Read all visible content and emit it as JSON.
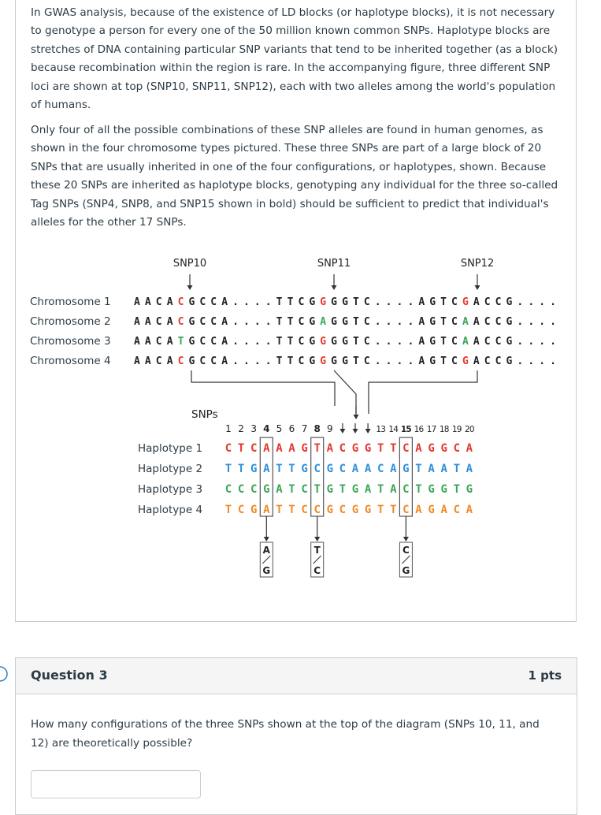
{
  "passage": {
    "paragraphs": [
      "In GWAS analysis, because of the existence of LD blocks (or haplotype blocks), it is not necessary to genotype a person for every one of the 50 million known common SNPs. Haplotype blocks are stretches of DNA containing particular SNP variants that tend to be inherited together (as a block) because recombination within the region is rare. In the accompanying figure, three different SNP loci are shown at top (SNP10, SNP11, SNP12), each with two alleles among the world's population of humans.",
      "Only four of all the possible combinations of these SNP alleles are found in human genomes, as shown in the four chromosome types pictured. These three SNPs are part of a large block of 20 SNPs that are usually inherited in one of the four configurations, or haplotypes, shown. Because these 20 SNPs are inherited as haplotype blocks, genotyping any individual for the three so-called Tag SNPs (SNP4, SNP8, and SNP15 shown in bold) should be sufficient to predict that individual's alleles for the other 17 SNPs."
    ],
    "figure": {
      "snp_labels": [
        "SNP10",
        "SNP11",
        "SNP12"
      ],
      "chromosomes": [
        {
          "label": "Chromosome 1",
          "segments": [
            {
              "text": "AACA",
              "color": "#222222"
            },
            {
              "text": "C",
              "color": "#e2382c"
            },
            {
              "text": "GCCA....TTCG",
              "color": "#222222"
            },
            {
              "text": "G",
              "color": "#e2382c"
            },
            {
              "text": "GGTC....AGTC",
              "color": "#222222"
            },
            {
              "text": "G",
              "color": "#e2382c"
            },
            {
              "text": "ACCG....",
              "color": "#222222"
            }
          ]
        },
        {
          "label": "Chromosome 2",
          "segments": [
            {
              "text": "AACA",
              "color": "#222222"
            },
            {
              "text": "C",
              "color": "#e2382c"
            },
            {
              "text": "GCCA....TTCG",
              "color": "#222222"
            },
            {
              "text": "A",
              "color": "#3aa655"
            },
            {
              "text": "GGTC....AGTC",
              "color": "#222222"
            },
            {
              "text": "A",
              "color": "#3aa655"
            },
            {
              "text": "ACCG....",
              "color": "#222222"
            }
          ]
        },
        {
          "label": "Chromosome 3",
          "segments": [
            {
              "text": "AACA",
              "color": "#222222"
            },
            {
              "text": "T",
              "color": "#3aa655"
            },
            {
              "text": "GCCA....TTCG",
              "color": "#222222"
            },
            {
              "text": "G",
              "color": "#e2382c"
            },
            {
              "text": "GGTC....AGTC",
              "color": "#222222"
            },
            {
              "text": "A",
              "color": "#3aa655"
            },
            {
              "text": "ACCG....",
              "color": "#222222"
            }
          ]
        },
        {
          "label": "Chromosome 4",
          "segments": [
            {
              "text": "AACA",
              "color": "#222222"
            },
            {
              "text": "C",
              "color": "#e2382c"
            },
            {
              "text": "GCCA....TTCG",
              "color": "#222222"
            },
            {
              "text": "G",
              "color": "#e2382c"
            },
            {
              "text": "GGTC....AGTC",
              "color": "#222222"
            },
            {
              "text": "G",
              "color": "#e2382c"
            },
            {
              "text": "ACCG....",
              "color": "#222222"
            }
          ]
        }
      ],
      "snps_label": "SNPs",
      "snp_numbers": [
        {
          "text": "1"
        },
        {
          "text": "2"
        },
        {
          "text": "3"
        },
        {
          "text": "4",
          "bold": true
        },
        {
          "text": "5"
        },
        {
          "text": "6"
        },
        {
          "text": "7"
        },
        {
          "text": "8",
          "bold": true
        },
        {
          "text": "9"
        },
        null,
        null,
        null,
        {
          "text": "13"
        },
        {
          "text": "14"
        },
        {
          "text": "15",
          "bold": true
        },
        {
          "text": "16"
        },
        {
          "text": "17"
        },
        {
          "text": "18"
        },
        {
          "text": "19"
        },
        {
          "text": "20"
        }
      ],
      "haplotypes": [
        {
          "label": "Haplotype 1",
          "sequence": "CTCAAAGTACGGTTCAGGCA",
          "color": "#e2382c"
        },
        {
          "label": "Haplotype 2",
          "sequence": "TTGATTGCGCAACAGTAATA",
          "color": "#2f8fd8"
        },
        {
          "label": "Haplotype 3",
          "sequence": "CCCGATCTGTGATACTGGTG",
          "color": "#3aa655"
        },
        {
          "label": "Haplotype 4",
          "sequence": "TCGATTCCGCGGTTCAGACA",
          "color": "#f08a24"
        }
      ],
      "alleles": [
        [
          "A",
          "G"
        ],
        [
          "T",
          "C"
        ],
        [
          "C",
          "G"
        ]
      ]
    }
  },
  "question": {
    "title": "Question 3",
    "points": "1 pts",
    "text": "How many configurations of the three SNPs shown at the top of the diagram (SNPs 10, 11, and 12) are theoretically possible?"
  }
}
